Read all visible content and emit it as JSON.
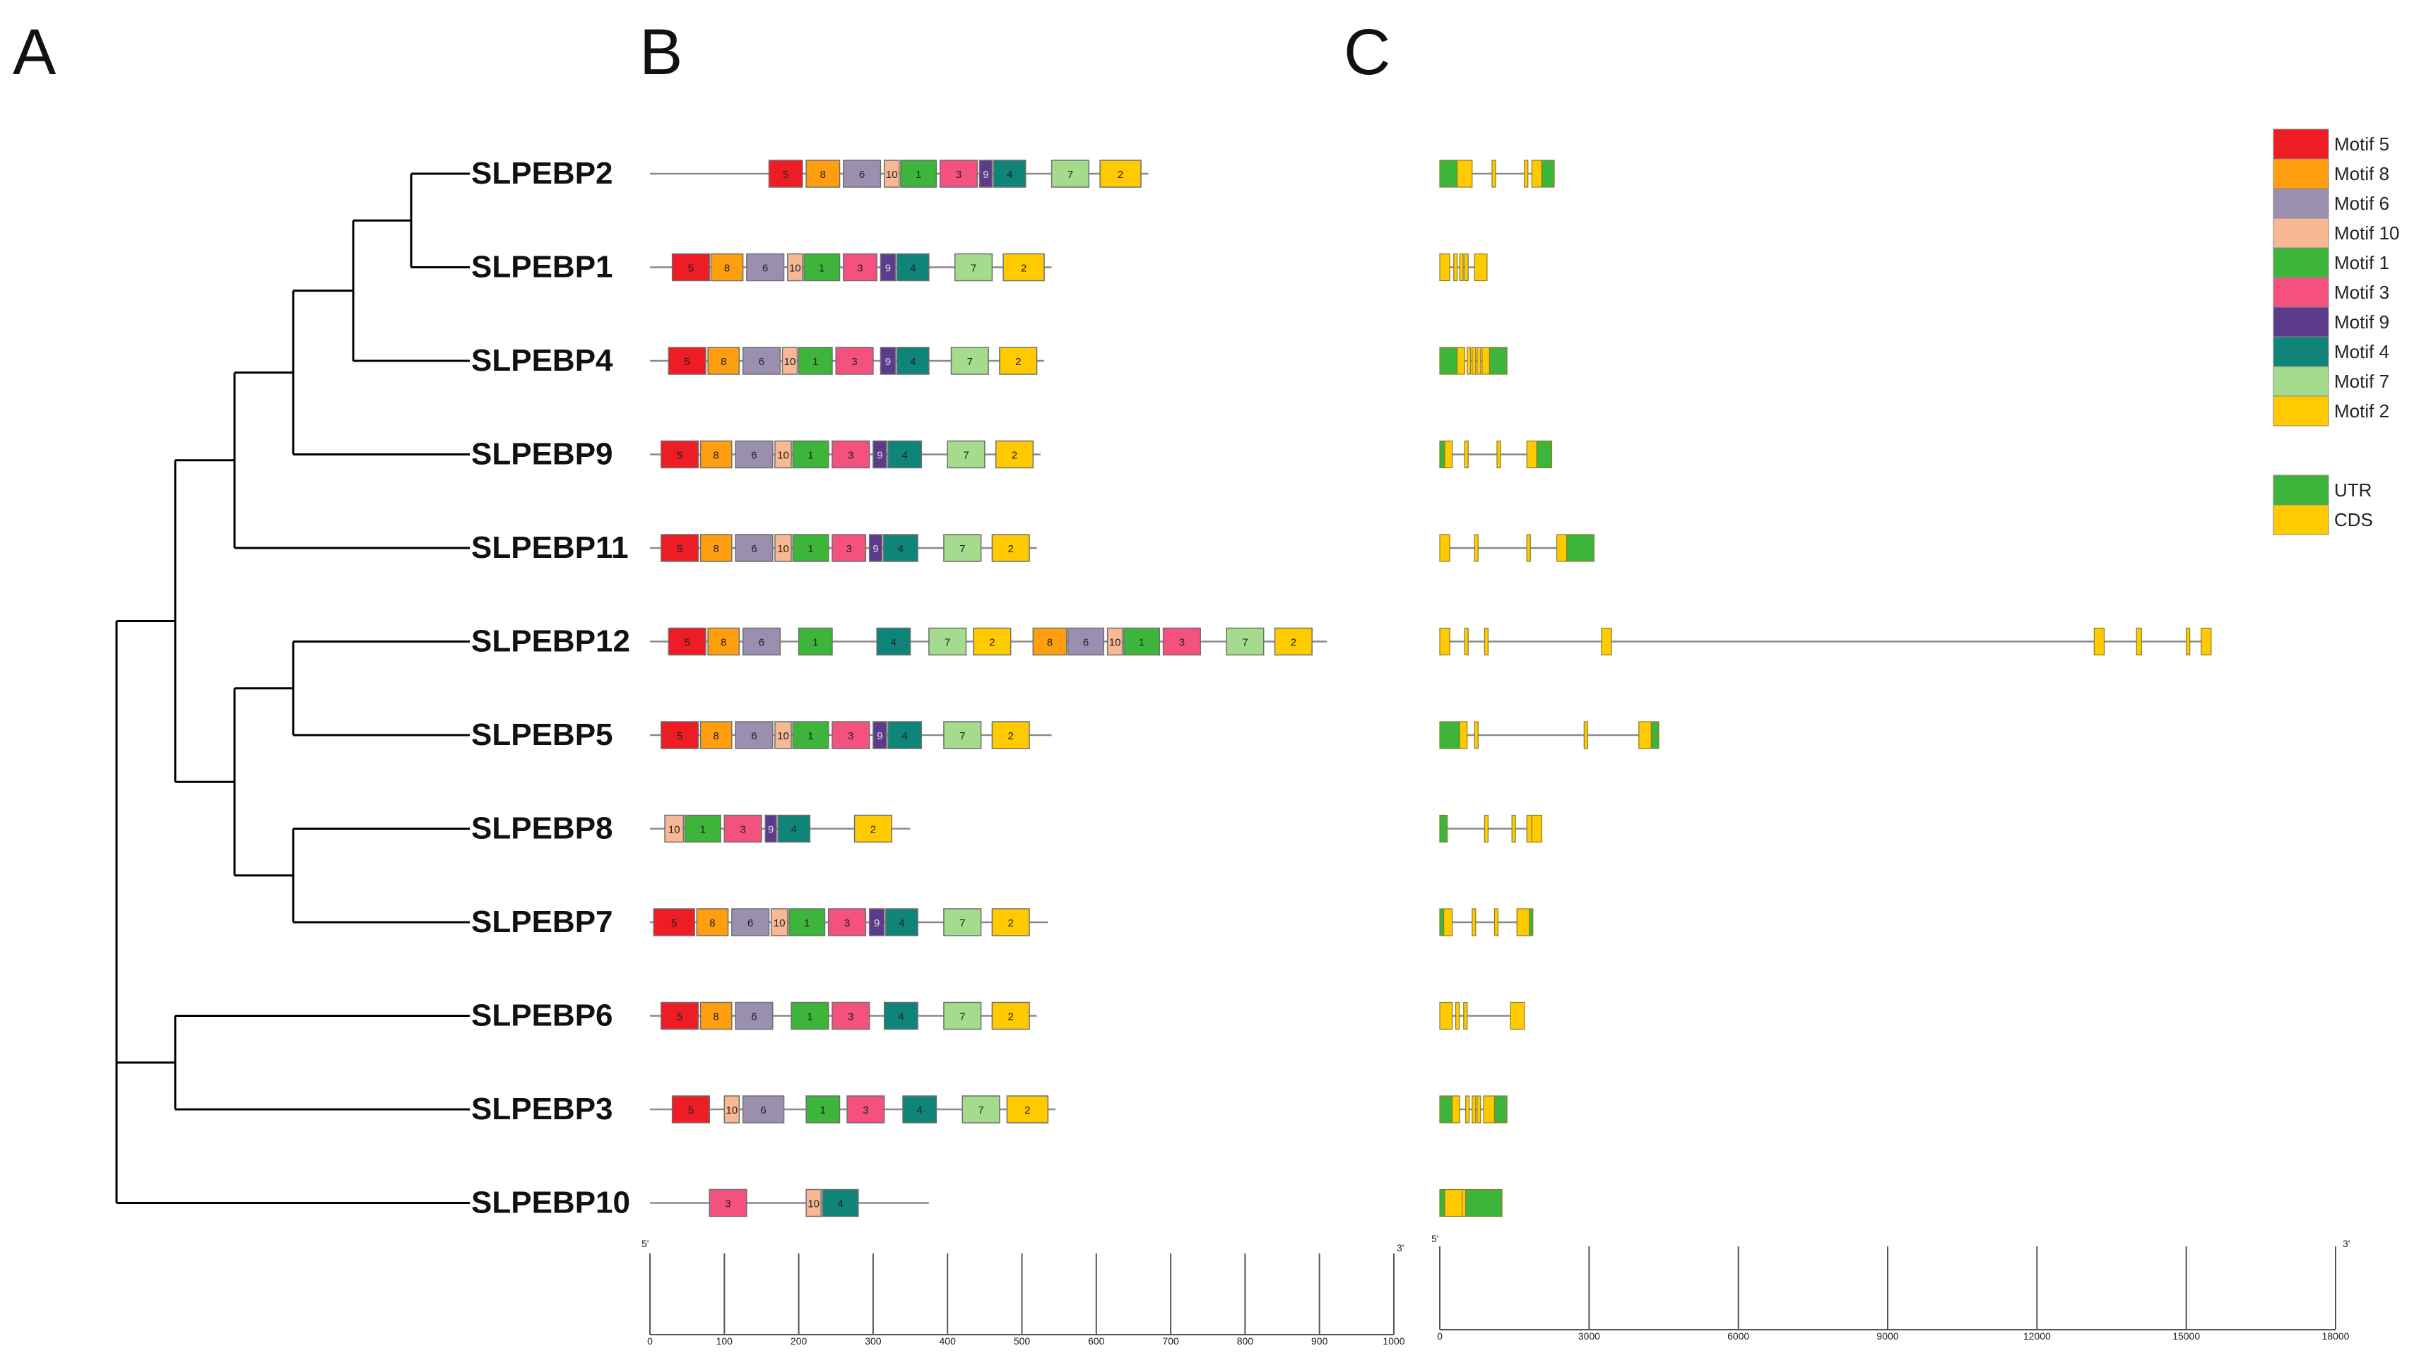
{
  "panels": {
    "a": "A",
    "b": "B",
    "c": "C"
  },
  "genes": [
    "SLPEBP2",
    "SLPEBP1",
    "SLPEBP4",
    "SLPEBP9",
    "SLPEBP11",
    "SLPEBP12",
    "SLPEBP5",
    "SLPEBP8",
    "SLPEBP7",
    "SLPEBP6",
    "SLPEBP3",
    "SLPEBP10"
  ],
  "tree": {
    "description_free": true,
    "nodes": [
      {
        "id": "n1",
        "children": [
          "SLPEBP2",
          "SLPEBP1"
        ]
      },
      {
        "id": "n2",
        "children": [
          "n1",
          "SLPEBP4"
        ]
      },
      {
        "id": "n3",
        "children": [
          "n2",
          "SLPEBP9"
        ]
      },
      {
        "id": "n4",
        "children": [
          "n3",
          "SLPEBP11"
        ]
      },
      {
        "id": "n5",
        "children": [
          "SLPEBP12",
          "SLPEBP5"
        ]
      },
      {
        "id": "n6",
        "children": [
          "SLPEBP8",
          "SLPEBP7"
        ]
      },
      {
        "id": "n7",
        "children": [
          "n5",
          "n6"
        ]
      },
      {
        "id": "n8",
        "children": [
          "n4",
          "n7"
        ]
      },
      {
        "id": "n9",
        "children": [
          "SLPEBP6",
          "SLPEBP3"
        ]
      },
      {
        "id": "n10",
        "children": [
          "n8",
          "n9"
        ]
      },
      {
        "id": "root",
        "children": [
          "n10",
          "SLPEBP10"
        ]
      }
    ]
  },
  "motif_legend": [
    {
      "id": "5",
      "label": "Motif 5",
      "color": "#ee1c25"
    },
    {
      "id": "8",
      "label": "Motif 8",
      "color": "#ff9f0f"
    },
    {
      "id": "6",
      "label": "Motif 6",
      "color": "#9b8fb0"
    },
    {
      "id": "10",
      "label": "Motif 10",
      "color": "#f7b894"
    },
    {
      "id": "1",
      "label": "Motif 1",
      "color": "#3cb53a"
    },
    {
      "id": "3",
      "label": "Motif 3",
      "color": "#f4517e"
    },
    {
      "id": "9",
      "label": "Motif 9",
      "color": "#5d3b8c"
    },
    {
      "id": "4",
      "label": "Motif 4",
      "color": "#0f8478"
    },
    {
      "id": "7",
      "label": "Motif 7",
      "color": "#a4db8c"
    },
    {
      "id": "2",
      "label": "Motif 2",
      "color": "#ffcb00"
    }
  ],
  "structure_legend": [
    {
      "id": "UTR",
      "label": "UTR",
      "color": "#3cb53a"
    },
    {
      "id": "CDS",
      "label": "CDS",
      "color": "#ffcb00"
    }
  ],
  "motif_data": {
    "SLPEBP2": {
      "length": 670,
      "motifs": [
        [
          "5",
          160,
          205
        ],
        [
          "8",
          210,
          255
        ],
        [
          "6",
          260,
          310
        ],
        [
          "10",
          315,
          335
        ],
        [
          "1",
          337,
          385
        ],
        [
          "3",
          390,
          440
        ],
        [
          "9",
          443,
          460
        ],
        [
          "4",
          462,
          505
        ],
        [
          "7",
          540,
          590
        ],
        [
          "2",
          605,
          660
        ]
      ]
    },
    "SLPEBP1": {
      "length": 540,
      "motifs": [
        [
          "5",
          30,
          80
        ],
        [
          "8",
          82,
          125
        ],
        [
          "6",
          130,
          180
        ],
        [
          "10",
          185,
          205
        ],
        [
          "1",
          207,
          255
        ],
        [
          "3",
          260,
          305
        ],
        [
          "9",
          310,
          330
        ],
        [
          "4",
          332,
          375
        ],
        [
          "7",
          410,
          460
        ],
        [
          "2",
          475,
          530
        ]
      ]
    },
    "SLPEBP4": {
      "length": 530,
      "motifs": [
        [
          "5",
          25,
          75
        ],
        [
          "8",
          78,
          120
        ],
        [
          "6",
          125,
          175
        ],
        [
          "10",
          178,
          198
        ],
        [
          "1",
          200,
          245
        ],
        [
          "3",
          250,
          300
        ],
        [
          "9",
          310,
          330
        ],
        [
          "4",
          332,
          375
        ],
        [
          "7",
          405,
          455
        ],
        [
          "2",
          470,
          520
        ]
      ]
    },
    "SLPEBP9": {
      "length": 525,
      "motifs": [
        [
          "5",
          15,
          65
        ],
        [
          "8",
          68,
          110
        ],
        [
          "6",
          115,
          165
        ],
        [
          "10",
          168,
          190
        ],
        [
          "1",
          192,
          240
        ],
        [
          "3",
          245,
          295
        ],
        [
          "9",
          300,
          318
        ],
        [
          "4",
          320,
          365
        ],
        [
          "7",
          400,
          450
        ],
        [
          "2",
          465,
          515
        ]
      ]
    },
    "SLPEBP11": {
      "length": 520,
      "motifs": [
        [
          "5",
          15,
          65
        ],
        [
          "8",
          68,
          110
        ],
        [
          "6",
          115,
          165
        ],
        [
          "10",
          168,
          190
        ],
        [
          "1",
          192,
          240
        ],
        [
          "3",
          245,
          290
        ],
        [
          "9",
          295,
          312
        ],
        [
          "4",
          314,
          360
        ],
        [
          "7",
          395,
          445
        ],
        [
          "2",
          460,
          510
        ]
      ]
    },
    "SLPEBP12": {
      "length": 910,
      "motifs": [
        [
          "5",
          25,
          75
        ],
        [
          "8",
          78,
          120
        ],
        [
          "6",
          125,
          175
        ],
        [
          "1",
          200,
          245
        ],
        [
          "4",
          305,
          350
        ],
        [
          "7",
          375,
          425
        ],
        [
          "2",
          435,
          485
        ],
        [
          "8",
          515,
          560
        ],
        [
          "6",
          562,
          610
        ],
        [
          "10",
          615,
          635
        ],
        [
          "1",
          637,
          685
        ],
        [
          "3",
          690,
          740
        ],
        [
          "7",
          775,
          825
        ],
        [
          "2",
          840,
          890
        ]
      ]
    },
    "SLPEBP5": {
      "length": 540,
      "motifs": [
        [
          "5",
          15,
          65
        ],
        [
          "8",
          68,
          110
        ],
        [
          "6",
          115,
          165
        ],
        [
          "10",
          168,
          190
        ],
        [
          "1",
          192,
          240
        ],
        [
          "3",
          245,
          295
        ],
        [
          "9",
          300,
          318
        ],
        [
          "4",
          320,
          365
        ],
        [
          "7",
          395,
          445
        ],
        [
          "2",
          460,
          510
        ]
      ]
    },
    "SLPEBP8": {
      "length": 350,
      "motifs": [
        [
          "10",
          20,
          45
        ],
        [
          "1",
          47,
          95
        ],
        [
          "3",
          100,
          150
        ],
        [
          "9",
          155,
          170
        ],
        [
          "4",
          172,
          215
        ],
        [
          "2",
          275,
          325
        ]
      ]
    },
    "SLPEBP7": {
      "length": 535,
      "motifs": [
        [
          "5",
          5,
          60
        ],
        [
          "8",
          63,
          105
        ],
        [
          "6",
          110,
          160
        ],
        [
          "10",
          163,
          185
        ],
        [
          "1",
          187,
          235
        ],
        [
          "3",
          240,
          290
        ],
        [
          "9",
          295,
          315
        ],
        [
          "4",
          317,
          360
        ],
        [
          "7",
          395,
          445
        ],
        [
          "2",
          460,
          510
        ]
      ]
    },
    "SLPEBP6": {
      "length": 520,
      "motifs": [
        [
          "5",
          15,
          65
        ],
        [
          "8",
          68,
          110
        ],
        [
          "6",
          115,
          165
        ],
        [
          "1",
          190,
          240
        ],
        [
          "3",
          245,
          295
        ],
        [
          "4",
          315,
          360
        ],
        [
          "7",
          395,
          445
        ],
        [
          "2",
          460,
          510
        ]
      ]
    },
    "SLPEBP3": {
      "length": 545,
      "motifs": [
        [
          "5",
          30,
          80
        ],
        [
          "10",
          100,
          120
        ],
        [
          "6",
          125,
          180
        ],
        [
          "1",
          210,
          255
        ],
        [
          "3",
          265,
          315
        ],
        [
          "4",
          340,
          385
        ],
        [
          "7",
          420,
          470
        ],
        [
          "2",
          480,
          535
        ]
      ]
    },
    "SLPEBP10": {
      "length": 375,
      "motifs": [
        [
          "3",
          80,
          130
        ],
        [
          "10",
          210,
          230
        ],
        [
          "4",
          232,
          280
        ]
      ]
    }
  },
  "motif_axis": {
    "ticks": [
      "0",
      "100",
      "200",
      "300",
      "400",
      "500",
      "600",
      "700",
      "800",
      "900",
      "1000"
    ],
    "tick_values": [
      0,
      100,
      200,
      300,
      400,
      500,
      600,
      700,
      800,
      900,
      1000
    ],
    "left_end": "5'",
    "right_end": "3'"
  },
  "structure_data": {
    "SLPEBP2": {
      "length": 2300,
      "features": [
        [
          "UTR",
          0,
          350
        ],
        [
          "CDS",
          350,
          650
        ],
        [
          "CDS",
          1050,
          1100
        ],
        [
          "CDS",
          1700,
          1750
        ],
        [
          "CDS",
          1850,
          2050
        ],
        [
          "UTR",
          2050,
          2300
        ]
      ]
    },
    "SLPEBP1": {
      "length": 950,
      "features": [
        [
          "CDS",
          0,
          200
        ],
        [
          "CDS",
          280,
          330
        ],
        [
          "CDS",
          400,
          450
        ],
        [
          "CDS",
          500,
          550
        ],
        [
          "CDS",
          700,
          950
        ]
      ]
    },
    "SLPEBP4": {
      "length": 1350,
      "features": [
        [
          "UTR",
          0,
          350
        ],
        [
          "CDS",
          350,
          500
        ],
        [
          "CDS",
          550,
          600
        ],
        [
          "CDS",
          650,
          700
        ],
        [
          "CDS",
          750,
          800
        ],
        [
          "CDS",
          850,
          1000
        ],
        [
          "UTR",
          1000,
          1350
        ]
      ]
    },
    "SLPEBP9": {
      "length": 2250,
      "features": [
        [
          "UTR",
          0,
          100
        ],
        [
          "CDS",
          100,
          250
        ],
        [
          "CDS",
          500,
          550
        ],
        [
          "CDS",
          1150,
          1200
        ],
        [
          "CDS",
          1750,
          1950
        ],
        [
          "UTR",
          1950,
          2250
        ]
      ]
    },
    "SLPEBP11": {
      "length": 3100,
      "features": [
        [
          "CDS",
          0,
          200
        ],
        [
          "CDS",
          700,
          750
        ],
        [
          "CDS",
          1750,
          1800
        ],
        [
          "CDS",
          2350,
          2550
        ],
        [
          "UTR",
          2550,
          3100
        ]
      ]
    },
    "SLPEBP12": {
      "length": 15500,
      "features": [
        [
          "CDS",
          0,
          200
        ],
        [
          "CDS",
          500,
          550
        ],
        [
          "CDS",
          900,
          950
        ],
        [
          "CDS",
          3250,
          3450
        ],
        [
          "CDS",
          13150,
          13350
        ],
        [
          "CDS",
          14000,
          14100
        ],
        [
          "CDS",
          15000,
          15050
        ],
        [
          "CDS",
          15300,
          15500
        ]
      ]
    },
    "SLPEBP5": {
      "length": 4400,
      "features": [
        [
          "UTR",
          0,
          400
        ],
        [
          "CDS",
          400,
          550
        ],
        [
          "CDS",
          700,
          750
        ],
        [
          "CDS",
          2900,
          2950
        ],
        [
          "CDS",
          4000,
          4250
        ],
        [
          "UTR",
          4250,
          4400
        ]
      ]
    },
    "SLPEBP8": {
      "length": 2050,
      "features": [
        [
          "UTR",
          0,
          150
        ],
        [
          "CDS",
          900,
          950
        ],
        [
          "CDS",
          1450,
          1500
        ],
        [
          "CDS",
          1750,
          1850
        ],
        [
          "CDS",
          1850,
          2050
        ]
      ]
    },
    "SLPEBP7": {
      "length": 1850,
      "features": [
        [
          "UTR",
          0,
          80
        ],
        [
          "CDS",
          80,
          250
        ],
        [
          "CDS",
          650,
          700
        ],
        [
          "CDS",
          1100,
          1150
        ],
        [
          "CDS",
          1550,
          1800
        ],
        [
          "UTR",
          1800,
          1850
        ]
      ]
    },
    "SLPEBP6": {
      "length": 1700,
      "features": [
        [
          "CDS",
          0,
          250
        ],
        [
          "CDS",
          320,
          370
        ],
        [
          "CDS",
          480,
          530
        ],
        [
          "CDS",
          1420,
          1700
        ]
      ]
    },
    "SLPEBP3": {
      "length": 1350,
      "features": [
        [
          "UTR",
          0,
          250
        ],
        [
          "CDS",
          250,
          400
        ],
        [
          "CDS",
          520,
          560
        ],
        [
          "CDS",
          650,
          690
        ],
        [
          "CDS",
          750,
          800
        ],
        [
          "CDS",
          880,
          1100
        ],
        [
          "UTR",
          1100,
          1350
        ]
      ]
    },
    "SLPEBP10": {
      "length": 1250,
      "features": [
        [
          "UTR",
          0,
          100
        ],
        [
          "CDS",
          100,
          450
        ],
        [
          "CDS",
          450,
          520
        ],
        [
          "UTR",
          520,
          1250
        ]
      ]
    }
  },
  "structure_axis": {
    "ticks": [
      "0",
      "3000",
      "6000",
      "9000",
      "12000",
      "15000",
      "18000"
    ],
    "tick_values": [
      0,
      3000,
      6000,
      9000,
      12000,
      15000,
      18000
    ],
    "max_value": 18000,
    "left_end": "5'",
    "right_end": "3'"
  },
  "colors": {
    "line": "#8a8a8a",
    "tree": "#000000",
    "box_stroke": "#6f6f6f",
    "text": "#111111"
  }
}
